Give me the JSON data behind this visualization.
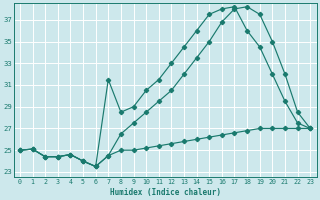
{
  "xlabel": "Humidex (Indice chaleur)",
  "ylabel": "",
  "background_color": "#cde8ec",
  "line_color": "#1a7a6e",
  "grid_color": "#ffffff",
  "xlim": [
    -0.5,
    23.5
  ],
  "ylim": [
    22.5,
    38.5
  ],
  "yticks": [
    23,
    25,
    27,
    29,
    31,
    33,
    35,
    37
  ],
  "xticks": [
    0,
    1,
    2,
    3,
    4,
    5,
    6,
    7,
    8,
    9,
    10,
    11,
    12,
    13,
    14,
    15,
    16,
    17,
    18,
    19,
    20,
    21,
    22,
    23
  ],
  "line1_x": [
    0,
    1,
    2,
    3,
    4,
    5,
    6,
    7,
    8,
    9,
    10,
    11,
    12,
    13,
    14,
    15,
    16,
    17,
    18,
    19,
    20,
    21,
    22,
    23
  ],
  "line1_y": [
    25.0,
    25.1,
    24.4,
    24.4,
    24.6,
    24.0,
    23.5,
    24.5,
    26.5,
    27.5,
    28.5,
    29.5,
    30.5,
    32.0,
    33.5,
    35.0,
    36.8,
    38.0,
    38.2,
    37.5,
    35.0,
    32.0,
    28.5,
    27.0
  ],
  "line2_x": [
    0,
    1,
    2,
    3,
    4,
    5,
    6,
    7,
    8,
    9,
    10,
    11,
    12,
    13,
    14,
    15,
    16,
    17,
    18,
    19,
    20,
    21,
    22,
    23
  ],
  "line2_y": [
    25.0,
    25.1,
    24.4,
    24.4,
    24.6,
    24.0,
    23.5,
    31.5,
    28.5,
    29.0,
    30.5,
    31.5,
    33.0,
    34.5,
    36.0,
    37.5,
    38.0,
    38.2,
    36.0,
    34.5,
    32.0,
    29.5,
    27.5,
    27.0
  ],
  "line3_x": [
    0,
    1,
    2,
    3,
    4,
    5,
    6,
    7,
    8,
    9,
    10,
    11,
    12,
    13,
    14,
    15,
    16,
    17,
    18,
    19,
    20,
    21,
    22,
    23
  ],
  "line3_y": [
    25.0,
    25.1,
    24.4,
    24.4,
    24.6,
    24.0,
    23.5,
    24.5,
    25.0,
    25.0,
    25.2,
    25.4,
    25.6,
    25.8,
    26.0,
    26.2,
    26.4,
    26.6,
    26.8,
    27.0,
    27.0,
    27.0,
    27.0,
    27.0
  ]
}
